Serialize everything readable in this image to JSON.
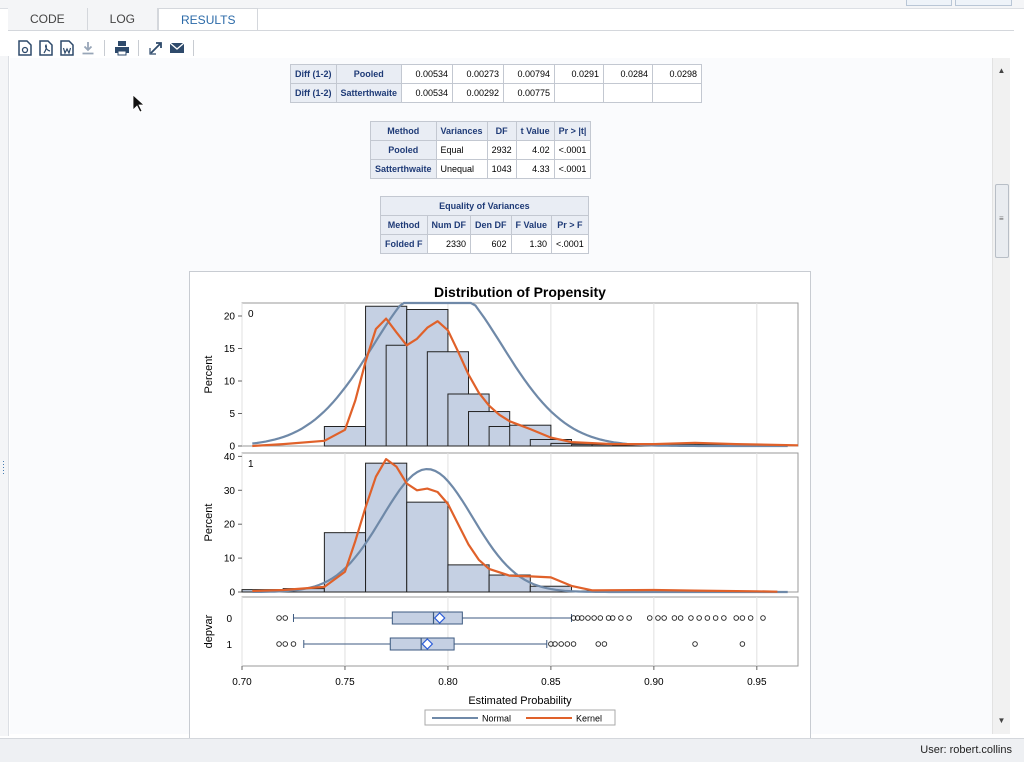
{
  "tabs": [
    {
      "label": "CODE"
    },
    {
      "label": "LOG"
    },
    {
      "label": "RESULTS"
    }
  ],
  "toolbar": {
    "icons": [
      "html-report-icon",
      "pdf-report-icon",
      "rtf-report-icon",
      "download-icon",
      "print-icon",
      "expand-icon",
      "email-icon"
    ]
  },
  "diff_table": {
    "rows": [
      {
        "label": "Diff (1-2)",
        "method": "Pooled",
        "values": [
          "0.00534",
          "0.00273",
          "0.00794",
          "0.0291",
          "0.0284",
          "0.0298"
        ]
      },
      {
        "label": "Diff (1-2)",
        "method": "Satterthwaite",
        "values": [
          "0.00534",
          "0.00292",
          "0.00775",
          "",
          "",
          ""
        ]
      }
    ]
  },
  "ttest_table": {
    "headers": [
      "Method",
      "Variances",
      "DF",
      "t Value",
      "Pr > |t|"
    ],
    "rows": [
      [
        "Pooled",
        "Equal",
        "2932",
        "4.02",
        "<.0001"
      ],
      [
        "Satterthwaite",
        "Unequal",
        "1043",
        "4.33",
        "<.0001"
      ]
    ]
  },
  "variance_table": {
    "title": "Equality of Variances",
    "headers": [
      "Method",
      "Num DF",
      "Den DF",
      "F Value",
      "Pr > F"
    ],
    "rows": [
      [
        "Folded F",
        "2330",
        "602",
        "1.30",
        "<.0001"
      ]
    ]
  },
  "status": {
    "user": "User: robert.collins"
  },
  "chart_data": {
    "type": "bar",
    "title": "Distribution of Propensity",
    "xlabel": "Estimated Probability",
    "ylabel": "Percent",
    "box_ylabel": "depvar",
    "xlim": [
      0.7,
      0.97
    ],
    "x_ticks": [
      "0.70",
      "0.75",
      "0.80",
      "0.85",
      "0.90",
      "0.95"
    ],
    "legend": [
      "Normal",
      "Kernel"
    ],
    "legend_position": "bottom",
    "colors": {
      "histogram": "#c5d0e3",
      "normal": "#6f89a8",
      "kernel": "#e0612a",
      "box": "#c5d0e3",
      "grid": "#e0e0e0"
    },
    "bin_width": 0.02,
    "panels": [
      {
        "label": "0",
        "ylim": [
          0,
          22
        ],
        "y_ticks": [
          0,
          5,
          10,
          15,
          20
        ],
        "bins": [
          {
            "x": 0.74,
            "value": 3
          },
          {
            "x": 0.76,
            "value": 21.5
          },
          {
            "x": 0.77,
            "value": 15.5
          },
          {
            "x": 0.78,
            "value": 21
          },
          {
            "x": 0.79,
            "value": 14.5
          },
          {
            "x": 0.8,
            "value": 8
          },
          {
            "x": 0.81,
            "value": 5.3
          },
          {
            "x": 0.82,
            "value": 3
          },
          {
            "x": 0.83,
            "value": 3.2
          },
          {
            "x": 0.84,
            "value": 1
          },
          {
            "x": 0.85,
            "value": 0.4
          },
          {
            "x": 0.86,
            "value": 0.2
          },
          {
            "x": 0.87,
            "value": 0.2
          },
          {
            "x": 0.88,
            "value": 0.1
          },
          {
            "x": 0.89,
            "value": 0.1
          },
          {
            "x": 0.9,
            "value": 0.2
          },
          {
            "x": 0.91,
            "value": 0.2
          },
          {
            "x": 0.92,
            "value": 0.2
          }
        ],
        "normal": {
          "mean": 0.795,
          "sd": 0.031
        },
        "kernel": [
          [
            0.705,
            0
          ],
          [
            0.72,
            0.3
          ],
          [
            0.74,
            0.8
          ],
          [
            0.75,
            2.5
          ],
          [
            0.755,
            7
          ],
          [
            0.76,
            13
          ],
          [
            0.765,
            18
          ],
          [
            0.77,
            19.6
          ],
          [
            0.775,
            17.5
          ],
          [
            0.78,
            15.5
          ],
          [
            0.785,
            16.5
          ],
          [
            0.79,
            18.2
          ],
          [
            0.795,
            19.2
          ],
          [
            0.8,
            17.8
          ],
          [
            0.805,
            14.5
          ],
          [
            0.81,
            11
          ],
          [
            0.815,
            8.2
          ],
          [
            0.82,
            6.2
          ],
          [
            0.825,
            4.8
          ],
          [
            0.83,
            3.8
          ],
          [
            0.835,
            3.2
          ],
          [
            0.84,
            2.6
          ],
          [
            0.85,
            1.3
          ],
          [
            0.86,
            0.6
          ],
          [
            0.88,
            0.3
          ],
          [
            0.9,
            0.3
          ],
          [
            0.92,
            0.5
          ],
          [
            0.94,
            0.3
          ],
          [
            0.97,
            0.1
          ]
        ]
      },
      {
        "label": "1",
        "ylim": [
          0,
          41
        ],
        "y_ticks": [
          0,
          10,
          20,
          30,
          40
        ],
        "bins": [
          {
            "x": 0.7,
            "value": 0.7
          },
          {
            "x": 0.72,
            "value": 1.0
          },
          {
            "x": 0.74,
            "value": 17.5
          },
          {
            "x": 0.76,
            "value": 38
          },
          {
            "x": 0.78,
            "value": 26.5
          },
          {
            "x": 0.8,
            "value": 8
          },
          {
            "x": 0.82,
            "value": 5
          },
          {
            "x": 0.84,
            "value": 1.7
          },
          {
            "x": 0.86,
            "value": 0.3
          },
          {
            "x": 0.88,
            "value": 0.3
          },
          {
            "x": 0.9,
            "value": 0.3
          },
          {
            "x": 0.92,
            "value": 0.3
          }
        ],
        "normal": {
          "mean": 0.79,
          "sd": 0.022
        },
        "kernel": [
          [
            0.705,
            0.3
          ],
          [
            0.72,
            0.6
          ],
          [
            0.74,
            1.5
          ],
          [
            0.75,
            6
          ],
          [
            0.755,
            15
          ],
          [
            0.76,
            25
          ],
          [
            0.765,
            34
          ],
          [
            0.77,
            39.2
          ],
          [
            0.775,
            37
          ],
          [
            0.78,
            32
          ],
          [
            0.785,
            30
          ],
          [
            0.79,
            30.5
          ],
          [
            0.795,
            29.5
          ],
          [
            0.8,
            26
          ],
          [
            0.805,
            20
          ],
          [
            0.81,
            14
          ],
          [
            0.815,
            9.5
          ],
          [
            0.82,
            6.8
          ],
          [
            0.83,
            4.8
          ],
          [
            0.84,
            4.6
          ],
          [
            0.85,
            4.3
          ],
          [
            0.86,
            1.8
          ],
          [
            0.87,
            0.5
          ],
          [
            0.9,
            0.6
          ],
          [
            0.92,
            0.4
          ],
          [
            0.95,
            0.2
          ],
          [
            0.96,
            0.1
          ]
        ]
      }
    ],
    "boxplots": [
      {
        "label": "0",
        "whisker_low": 0.725,
        "q1": 0.773,
        "median": 0.793,
        "mean": 0.796,
        "q3": 0.807,
        "whisker_high": 0.86,
        "outliers": [
          0.718,
          0.721,
          0.861,
          0.863,
          0.865,
          0.868,
          0.871,
          0.874,
          0.878,
          0.88,
          0.884,
          0.888,
          0.898,
          0.902,
          0.905,
          0.91,
          0.913,
          0.918,
          0.922,
          0.926,
          0.93,
          0.934,
          0.94,
          0.943,
          0.947,
          0.953
        ]
      },
      {
        "label": "1",
        "whisker_low": 0.73,
        "q1": 0.772,
        "median": 0.787,
        "mean": 0.79,
        "q3": 0.803,
        "whisker_high": 0.848,
        "outliers": [
          0.718,
          0.721,
          0.725,
          0.85,
          0.852,
          0.855,
          0.858,
          0.861,
          0.873,
          0.876,
          0.92,
          0.943
        ]
      }
    ]
  }
}
